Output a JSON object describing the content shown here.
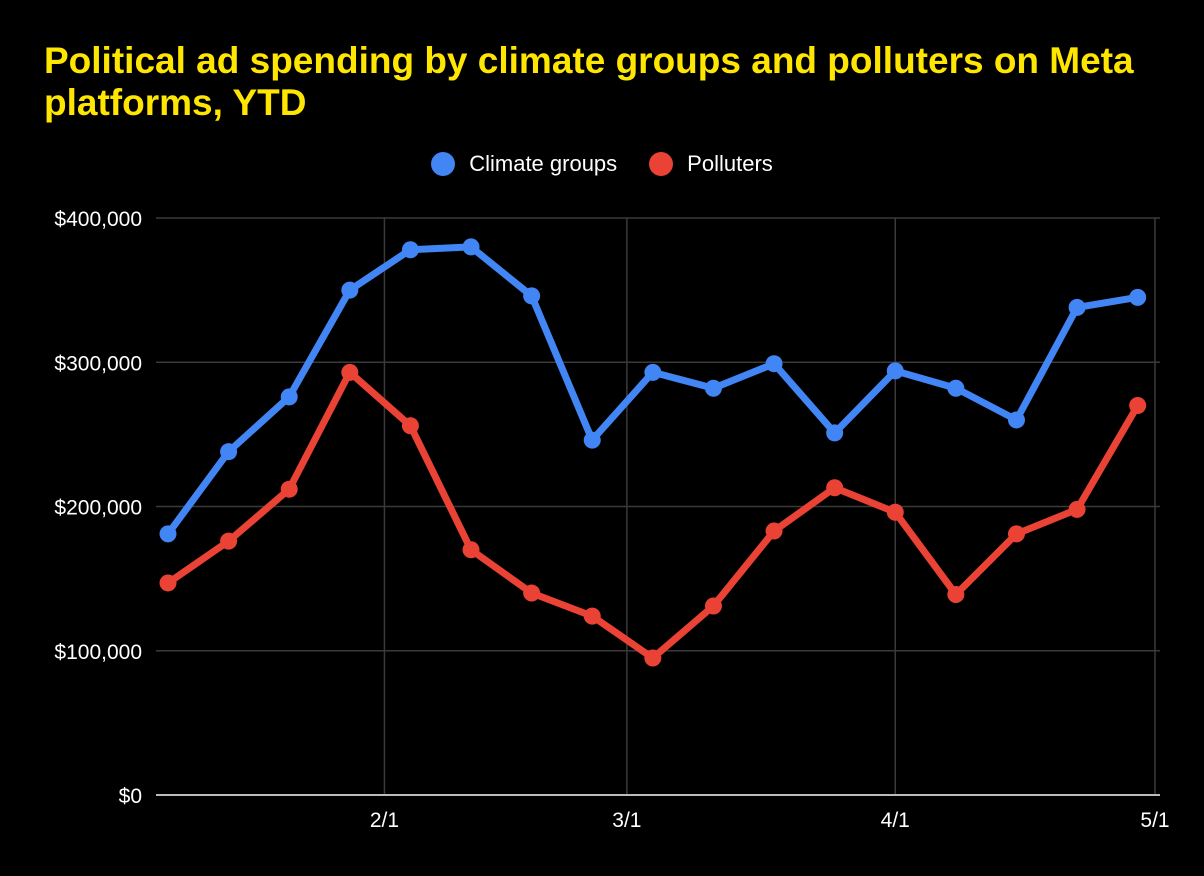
{
  "chart_data": {
    "type": "line",
    "title": "Political ad spending by climate groups and polluters on Meta platforms, YTD",
    "xlabel": "",
    "ylabel": "",
    "ylim": [
      0,
      400000
    ],
    "yticks": [
      0,
      100000,
      200000,
      300000,
      400000
    ],
    "ytick_labels": [
      "$0",
      "$100,000",
      "$200,000",
      "$300,000",
      "$400,000"
    ],
    "xticks": [
      {
        "label": "2/1",
        "date": "2023-02-01"
      },
      {
        "label": "3/1",
        "date": "2023-03-01"
      },
      {
        "label": "4/1",
        "date": "2023-04-01"
      },
      {
        "label": "5/1",
        "date": "2023-05-01"
      }
    ],
    "xlim": [
      "2023-01-07",
      "2023-05-01"
    ],
    "grid": true,
    "legend_position": "top",
    "x": [
      "2023-01-07",
      "2023-01-14",
      "2023-01-21",
      "2023-01-28",
      "2023-02-04",
      "2023-02-11",
      "2023-02-18",
      "2023-02-25",
      "2023-03-04",
      "2023-03-11",
      "2023-03-18",
      "2023-03-25",
      "2023-04-01",
      "2023-04-08",
      "2023-04-15",
      "2023-04-22",
      "2023-04-29"
    ],
    "series": [
      {
        "name": "Climate groups",
        "color": "#4285F4",
        "values": [
          181000,
          238000,
          276000,
          350000,
          378000,
          380000,
          346000,
          246000,
          293000,
          282000,
          299000,
          251000,
          294000,
          282000,
          260000,
          338000,
          345000
        ]
      },
      {
        "name": "Polluters",
        "color": "#EA4335",
        "values": [
          147000,
          176000,
          212000,
          293000,
          256000,
          170000,
          140000,
          124000,
          95000,
          131000,
          183000,
          213000,
          196000,
          139000,
          181000,
          198000,
          270000
        ]
      }
    ]
  },
  "colors": {
    "background": "#000000",
    "title": "#FFE600",
    "text": "#FFFFFF",
    "grid": "#3A3A3A",
    "axis": "#BBBBBB"
  }
}
